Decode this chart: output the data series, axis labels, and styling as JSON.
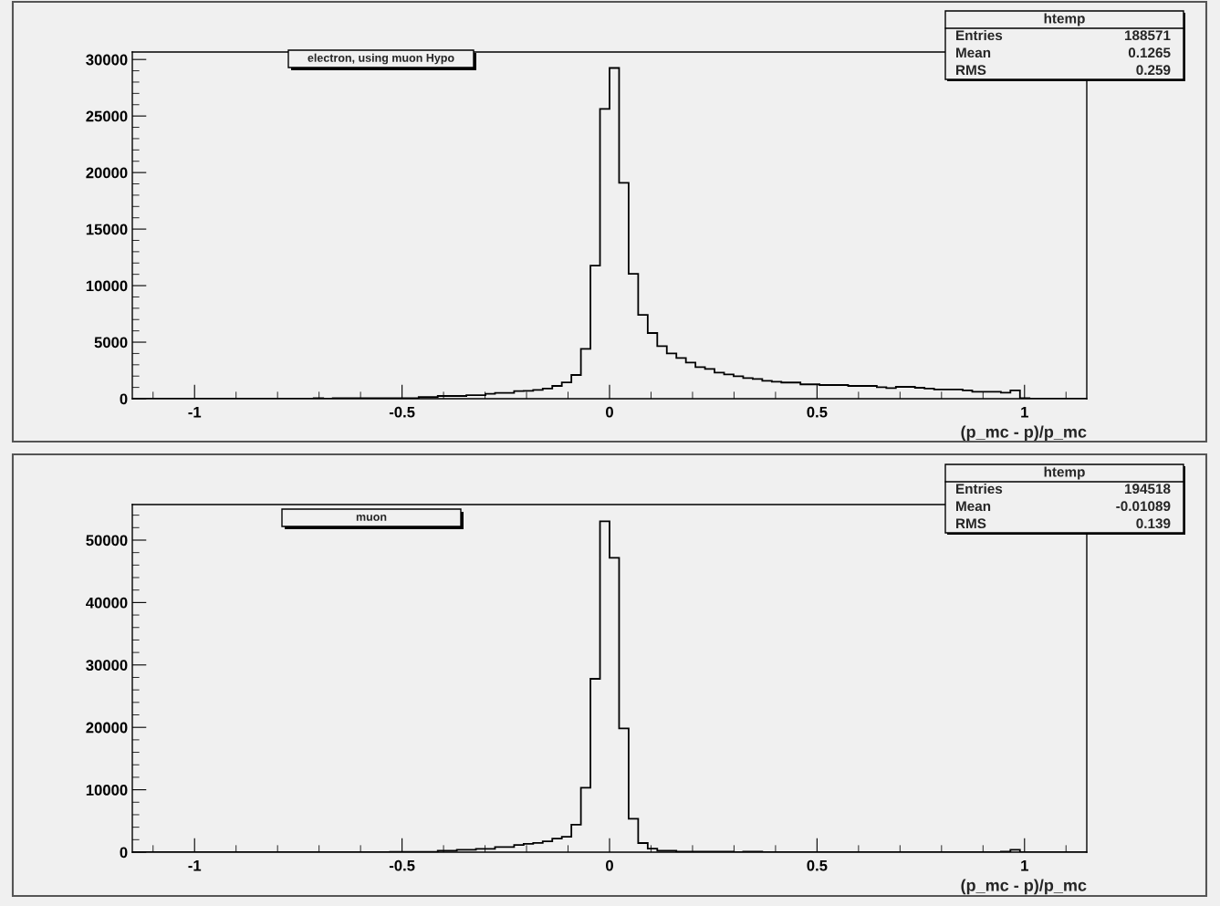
{
  "chart_data": [
    {
      "type": "histogram",
      "title": "electron, using muon Hypo",
      "xlabel": "(p_mc - p)/p_mc",
      "bins": [
        -1.15,
        -1.127,
        -1.104,
        -1.081,
        -1.058,
        -1.035,
        -1.012,
        -0.989,
        -0.966,
        -0.943,
        -0.92,
        -0.897,
        -0.874,
        -0.851,
        -0.828,
        -0.805,
        -0.782,
        -0.759,
        -0.736,
        -0.713,
        -0.69,
        -0.667,
        -0.644,
        -0.621,
        -0.598,
        -0.575,
        -0.552,
        -0.529,
        -0.506,
        -0.483,
        -0.46,
        -0.437,
        -0.414,
        -0.391,
        -0.368,
        -0.345,
        -0.322,
        -0.299,
        -0.276,
        -0.253,
        -0.23,
        -0.207,
        -0.184,
        -0.161,
        -0.138,
        -0.115,
        -0.092,
        -0.069,
        -0.046,
        -0.023,
        0,
        0.023,
        0.046,
        0.069,
        0.092,
        0.115,
        0.138,
        0.161,
        0.184,
        0.207,
        0.23,
        0.253,
        0.276,
        0.299,
        0.322,
        0.345,
        0.368,
        0.391,
        0.414,
        0.437,
        0.46,
        0.483,
        0.506,
        0.529,
        0.552,
        0.575,
        0.598,
        0.621,
        0.644,
        0.667,
        0.69,
        0.713,
        0.736,
        0.759,
        0.782,
        0.805,
        0.828,
        0.851,
        0.874,
        0.897,
        0.92,
        0.943,
        0.966,
        0.989,
        1.012,
        1.035,
        1.058,
        1.081,
        1.104,
        1.127,
        1.15
      ],
      "values": [
        0,
        0,
        0,
        0,
        0,
        0,
        0,
        0,
        0,
        0,
        0,
        0,
        0,
        0,
        0,
        0,
        0,
        0,
        0,
        50,
        0,
        50,
        50,
        50,
        50,
        50,
        50,
        50,
        50,
        50,
        140,
        140,
        240,
        240,
        240,
        320,
        320,
        430,
        510,
        510,
        680,
        700,
        780,
        890,
        1130,
        1450,
        2100,
        4410,
        11770,
        25620,
        29250,
        19090,
        11050,
        7420,
        5810,
        4650,
        4000,
        3600,
        3190,
        2790,
        2630,
        2310,
        2150,
        1990,
        1830,
        1750,
        1590,
        1510,
        1430,
        1430,
        1270,
        1270,
        1210,
        1210,
        1210,
        1130,
        1130,
        1130,
        1020,
        940,
        1050,
        1050,
        970,
        890,
        810,
        810,
        810,
        730,
        620,
        620,
        620,
        540,
        730,
        50,
        0,
        0,
        0,
        0,
        0,
        0
      ],
      "color": "#000000",
      "xlim": [
        -1.15,
        1.15
      ],
      "ylim": [
        0,
        30660
      ],
      "xticks": [
        -1,
        -0.5,
        0,
        0.5,
        1
      ],
      "yticks": [
        0,
        5000,
        10000,
        15000,
        20000,
        25000,
        30000
      ],
      "annotations": [
        "htemp",
        "Entries",
        "188571",
        "Mean",
        "0.1265",
        "RMS",
        "0.259"
      ]
    },
    {
      "type": "histogram",
      "title": "muon",
      "xlabel": "(p_mc - p)/p_mc",
      "bins": [
        -1.15,
        -1.127,
        -1.104,
        -1.081,
        -1.058,
        -1.035,
        -1.012,
        -0.989,
        -0.966,
        -0.943,
        -0.92,
        -0.897,
        -0.874,
        -0.851,
        -0.828,
        -0.805,
        -0.782,
        -0.759,
        -0.736,
        -0.713,
        -0.69,
        -0.667,
        -0.644,
        -0.621,
        -0.598,
        -0.575,
        -0.552,
        -0.529,
        -0.506,
        -0.483,
        -0.46,
        -0.437,
        -0.414,
        -0.391,
        -0.368,
        -0.345,
        -0.322,
        -0.299,
        -0.276,
        -0.253,
        -0.23,
        -0.207,
        -0.184,
        -0.161,
        -0.138,
        -0.115,
        -0.092,
        -0.069,
        -0.046,
        -0.023,
        0,
        0.023,
        0.046,
        0.069,
        0.092,
        0.115,
        0.138,
        0.161,
        0.184,
        0.207,
        0.23,
        0.253,
        0.276,
        0.299,
        0.322,
        0.345,
        0.368,
        0.391,
        0.414,
        0.437,
        0.46,
        0.483,
        0.506,
        0.529,
        0.552,
        0.575,
        0.598,
        0.621,
        0.644,
        0.667,
        0.69,
        0.713,
        0.736,
        0.759,
        0.782,
        0.805,
        0.828,
        0.851,
        0.874,
        0.897,
        0.92,
        0.943,
        0.966,
        0.989,
        1.012,
        1.035,
        1.058,
        1.081,
        1.104,
        1.127,
        1.15
      ],
      "values": [
        0,
        0,
        0,
        0,
        0,
        0,
        0,
        0,
        0,
        0,
        0,
        0,
        0,
        0,
        0,
        0,
        0,
        0,
        0,
        0,
        0,
        0,
        0,
        0,
        0,
        0,
        0,
        50,
        50,
        50,
        50,
        50,
        240,
        240,
        390,
        390,
        540,
        540,
        830,
        830,
        1150,
        1320,
        1490,
        1730,
        2170,
        2470,
        4390,
        10330,
        27780,
        53020,
        47170,
        19830,
        5360,
        1460,
        580,
        240,
        240,
        80,
        80,
        80,
        80,
        80,
        80,
        0,
        80,
        80,
        0,
        0,
        0,
        0,
        0,
        0,
        0,
        0,
        0,
        0,
        0,
        0,
        0,
        0,
        0,
        0,
        0,
        0,
        0,
        0,
        0,
        0,
        0,
        0,
        0,
        80,
        390,
        0,
        0,
        0,
        0,
        0,
        0,
        0
      ],
      "color": "#000000",
      "xlim": [
        -1.15,
        1.15
      ],
      "ylim": [
        0,
        55700
      ],
      "xticks": [
        -1,
        -0.5,
        0,
        0.5,
        1
      ],
      "yticks": [
        0,
        10000,
        20000,
        30000,
        40000,
        50000
      ],
      "annotations": [
        "htemp",
        "Entries",
        "194518",
        "Mean",
        "-0.01089",
        "RMS",
        "0.139"
      ]
    }
  ]
}
